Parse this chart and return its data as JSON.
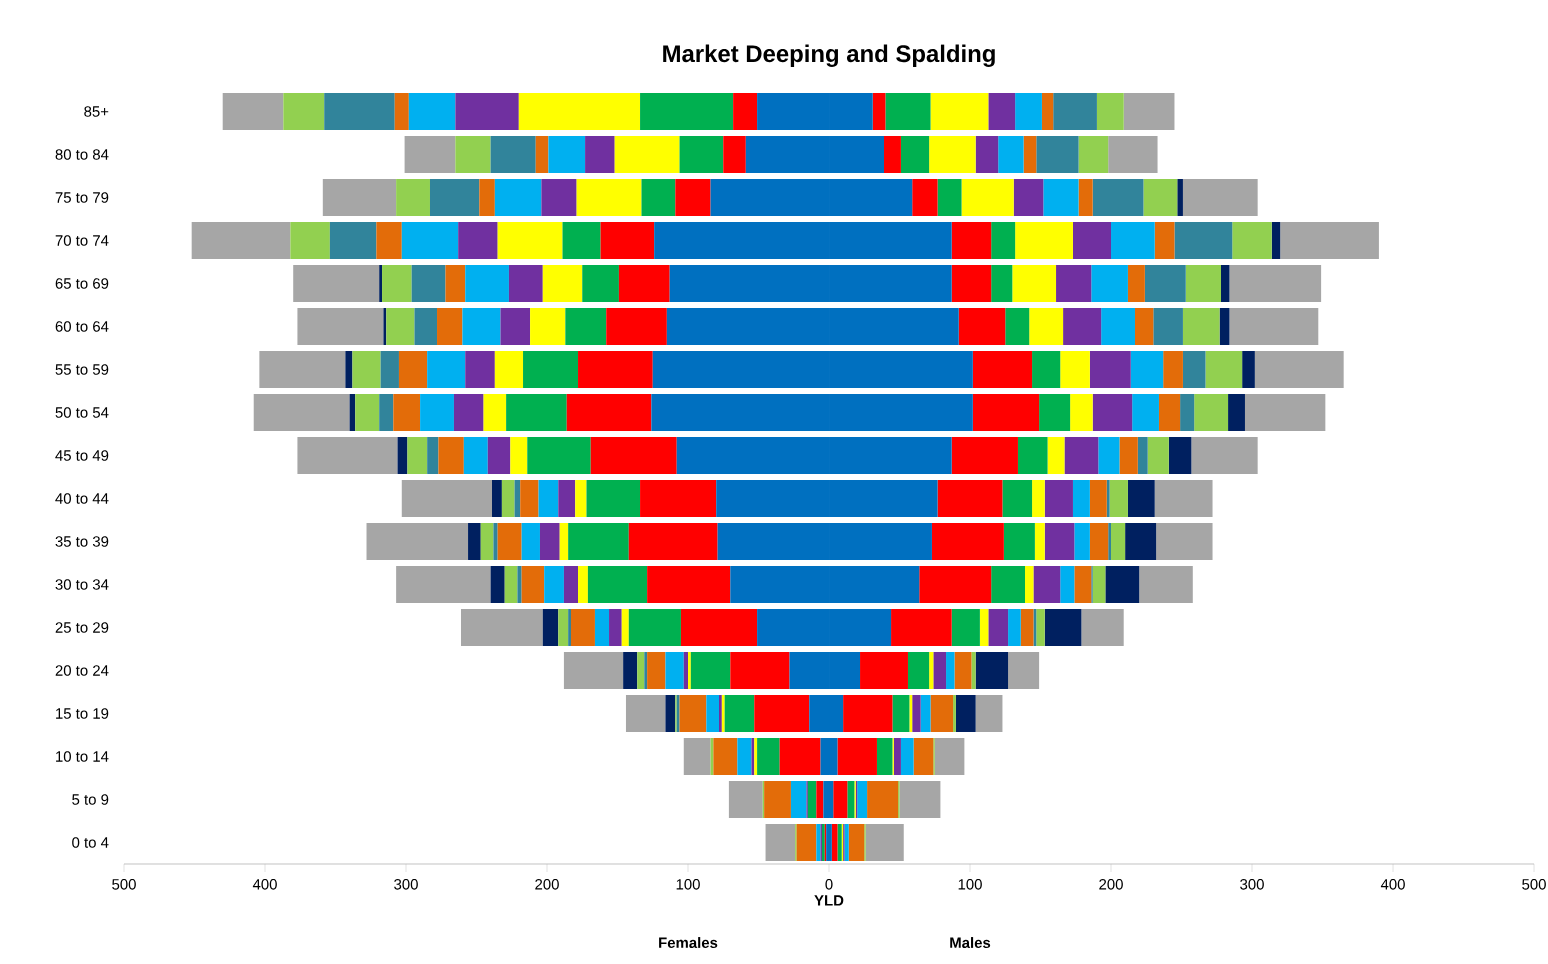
{
  "chart_data": {
    "type": "bar",
    "orientation": "horizontal",
    "stacked": true,
    "title": "Market Deeping and Spalding",
    "xlabel": "YLD",
    "annotations": [
      "Females",
      "Males"
    ],
    "categories": [
      "85+",
      "80 to 84",
      "75 to 79",
      "70 to 74",
      "65 to 69",
      "60 to 64",
      "55 to 59",
      "50 to 54",
      "45 to 49",
      "40 to 44",
      "35 to 39",
      "30 to 34",
      "25 to 29",
      "20 to 24",
      "15 to 19",
      "10 to 14",
      "5 to 9",
      "0 to 4"
    ],
    "xlim": [
      -500,
      500
    ],
    "xticks": [
      {
        "value": -500,
        "label": "500"
      },
      {
        "value": -400,
        "label": "400"
      },
      {
        "value": -300,
        "label": "300"
      },
      {
        "value": -200,
        "label": "200"
      },
      {
        "value": -100,
        "label": "100"
      },
      0,
      100,
      200,
      300,
      400,
      500
    ],
    "series": [
      {
        "color": "#0070c0",
        "values": [
          -51,
          -59,
          -84,
          -124,
          -113,
          -115,
          -125,
          -126,
          -108,
          -80,
          -79,
          -70,
          -51,
          -28,
          -14,
          -6,
          -4,
          -2
        ]
      },
      {
        "color": "#ff0000",
        "values": [
          -17,
          -16,
          -25,
          -38,
          -36,
          -43,
          -53,
          -60,
          -61,
          -54,
          -63,
          -59,
          -54,
          -42,
          -39,
          -29,
          -5,
          -1
        ]
      },
      {
        "color": "#00b050",
        "values": [
          -66,
          -31,
          -24,
          -27,
          -26,
          -29,
          -39,
          -43,
          -45,
          -38,
          -43,
          -42,
          -37,
          -28,
          -21,
          -16,
          -6,
          -2
        ]
      },
      {
        "color": "#ffff00",
        "values": [
          -86,
          -46,
          -46,
          -46,
          -28,
          -25,
          -20,
          -16,
          -12,
          -8,
          -6,
          -7,
          -5,
          -2,
          -2,
          -2,
          0,
          0
        ]
      },
      {
        "color": "#7030a0",
        "values": [
          -45,
          -21,
          -25,
          -28,
          -24,
          -21,
          -21,
          -21,
          -16,
          -12,
          -14,
          -10,
          -9,
          -3,
          -2,
          -2,
          -1,
          -1
        ]
      },
      {
        "color": "#00b0f0",
        "values": [
          -33,
          -26,
          -33,
          -40,
          -31,
          -27,
          -27,
          -24,
          -17,
          -14,
          -13,
          -14,
          -10,
          -13,
          -9,
          -10,
          -11,
          -3
        ]
      },
      {
        "color": "#e36c09",
        "values": [
          -10,
          -9,
          -11,
          -18,
          -14,
          -18,
          -20,
          -19,
          -18,
          -13,
          -17,
          -16,
          -17,
          -13,
          -19,
          -17,
          -19,
          -14
        ]
      },
      {
        "color": "#31849b",
        "values": [
          -50,
          -32,
          -35,
          -33,
          -24,
          -16,
          -13,
          -10,
          -8,
          -4,
          -3,
          -3,
          -2,
          -2,
          -2,
          0,
          0,
          0
        ]
      },
      {
        "color": "#92d050",
        "values": [
          -29,
          -25,
          -24,
          -28,
          -21,
          -20,
          -20,
          -17,
          -14,
          -9,
          -9,
          -9,
          -7,
          -5,
          -1,
          -2,
          -1,
          -1
        ]
      },
      {
        "color": "#002060",
        "values": [
          0,
          0,
          0,
          0,
          -2,
          -2,
          -5,
          -4,
          -7,
          -7,
          -9,
          -10,
          -11,
          -10,
          -7,
          0,
          0,
          0
        ]
      },
      {
        "color": "#a6a6a6",
        "values": [
          -43,
          -36,
          -52,
          -70,
          -61,
          -61,
          -61,
          -68,
          -71,
          -64,
          -72,
          -67,
          -58,
          -42,
          -28,
          -19,
          -24,
          -21
        ]
      },
      {
        "color": "#0070c0",
        "values": [
          31,
          39,
          59,
          87,
          87,
          92,
          102,
          102,
          87,
          77,
          73,
          64,
          44,
          22,
          10,
          6,
          3,
          2
        ]
      },
      {
        "color": "#ff0000",
        "values": [
          9,
          12,
          18,
          28,
          28,
          33,
          42,
          47,
          47,
          46,
          51,
          51,
          43,
          34,
          35,
          28,
          10,
          4
        ]
      },
      {
        "color": "#00b050",
        "values": [
          32,
          20,
          17,
          17,
          15,
          17,
          20,
          22,
          21,
          21,
          22,
          24,
          20,
          15,
          12,
          11,
          5,
          3
        ]
      },
      {
        "color": "#ffff00",
        "values": [
          41,
          33,
          37,
          41,
          31,
          24,
          21,
          16,
          12,
          9,
          7,
          6,
          6,
          3,
          2,
          1,
          1,
          1
        ]
      },
      {
        "color": "#7030a0",
        "values": [
          19,
          16,
          21,
          27,
          25,
          27,
          29,
          28,
          24,
          20,
          21,
          19,
          14,
          9,
          6,
          5,
          1,
          1
        ]
      },
      {
        "color": "#00b0f0",
        "values": [
          19,
          18,
          25,
          31,
          26,
          24,
          23,
          19,
          15,
          12,
          11,
          10,
          9,
          6,
          7,
          9,
          7,
          3
        ]
      },
      {
        "color": "#e36c09",
        "values": [
          8,
          9,
          10,
          14,
          12,
          13,
          14,
          15,
          13,
          12,
          13,
          12,
          9,
          12,
          16,
          14,
          22,
          11
        ]
      },
      {
        "color": "#31849b",
        "values": [
          31,
          30,
          36,
          41,
          29,
          21,
          16,
          10,
          7,
          2,
          2,
          1,
          2,
          0,
          0,
          0,
          0,
          0
        ]
      },
      {
        "color": "#92d050",
        "values": [
          19,
          21,
          24,
          28,
          25,
          26,
          26,
          24,
          15,
          13,
          10,
          9,
          6,
          3,
          2,
          1,
          1,
          1
        ]
      },
      {
        "color": "#002060",
        "values": [
          0,
          0,
          4,
          6,
          6,
          7,
          9,
          12,
          16,
          19,
          22,
          24,
          26,
          23,
          14,
          0,
          0,
          0
        ]
      },
      {
        "color": "#a6a6a6",
        "values": [
          36,
          35,
          53,
          70,
          65,
          63,
          63,
          57,
          47,
          41,
          40,
          38,
          30,
          22,
          19,
          21,
          29,
          27
        ]
      }
    ]
  }
}
